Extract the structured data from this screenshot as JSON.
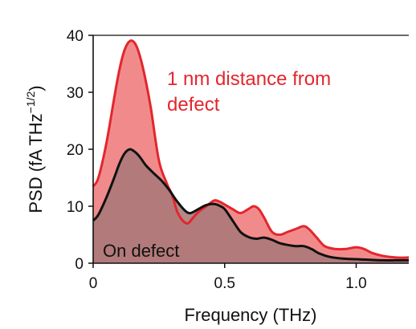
{
  "chart_data": {
    "type": "area",
    "xlabel": "Frequency (THz)",
    "ylabel": "PSD (fA THz",
    "ylabel_sup": "−1/2",
    "ylabel_suffix": ")",
    "xlim": [
      0,
      1.2
    ],
    "ylim": [
      0,
      40
    ],
    "xticks": [
      0,
      0.5,
      1.0
    ],
    "xtick_labels": [
      "0",
      "0.5",
      "1.0"
    ],
    "yticks": [
      0,
      10,
      20,
      30,
      40
    ],
    "ytick_labels": [
      "0",
      "10",
      "20",
      "30",
      "40"
    ],
    "grid": false,
    "legend": "none",
    "annotations": [
      {
        "id": "red-line1",
        "text": "1 nm distance from"
      },
      {
        "id": "red-line2",
        "text": "defect"
      },
      {
        "id": "black",
        "text": "On defect"
      }
    ],
    "series": [
      {
        "color": "#e3262d",
        "fill": "#f08585",
        "x": [
          0,
          0.02,
          0.05,
          0.08,
          0.1,
          0.12,
          0.14,
          0.16,
          0.18,
          0.2,
          0.22,
          0.25,
          0.28,
          0.3,
          0.32,
          0.34,
          0.36,
          0.38,
          0.4,
          0.43,
          0.46,
          0.48,
          0.5,
          0.53,
          0.56,
          0.59,
          0.61,
          0.63,
          0.65,
          0.68,
          0.71,
          0.74,
          0.77,
          0.8,
          0.82,
          0.85,
          0.88,
          0.92,
          0.96,
          1.0,
          1.03,
          1.06,
          1.1,
          1.15,
          1.2
        ],
        "values": [
          13.5,
          15,
          21,
          29,
          34,
          37.5,
          39,
          38.5,
          36,
          32,
          27,
          18,
          14,
          12,
          9,
          7.5,
          7,
          8,
          9,
          10,
          11,
          10.8,
          10.3,
          9.5,
          8.8,
          9.5,
          10,
          9.5,
          8,
          5.5,
          5,
          5.5,
          6,
          6.5,
          6,
          4.5,
          3,
          2.5,
          2.5,
          2.8,
          2.5,
          1.8,
          1.3,
          1.0,
          1.0
        ]
      },
      {
        "color": "#111111",
        "fill": "#a87878",
        "x": [
          0,
          0.02,
          0.05,
          0.08,
          0.1,
          0.12,
          0.14,
          0.16,
          0.18,
          0.2,
          0.23,
          0.26,
          0.29,
          0.32,
          0.35,
          0.37,
          0.4,
          0.43,
          0.46,
          0.48,
          0.5,
          0.53,
          0.56,
          0.59,
          0.62,
          0.65,
          0.68,
          0.71,
          0.74,
          0.77,
          0.8,
          0.83,
          0.86,
          0.9,
          0.95,
          1.0,
          1.05,
          1.1,
          1.15,
          1.2
        ],
        "values": [
          7.5,
          8.5,
          11.5,
          15,
          17.5,
          19.3,
          20,
          19.5,
          18.5,
          17.2,
          15.8,
          14.5,
          12.8,
          10.8,
          9.2,
          8.8,
          9.5,
          10.2,
          10.4,
          10.1,
          9.5,
          7.5,
          5.5,
          4.6,
          4.3,
          4.5,
          4.1,
          3.5,
          3.2,
          3.0,
          3.0,
          2.5,
          1.7,
          1.1,
          0.8,
          0.7,
          0.6,
          0.5,
          0.5,
          0.5
        ]
      }
    ]
  }
}
